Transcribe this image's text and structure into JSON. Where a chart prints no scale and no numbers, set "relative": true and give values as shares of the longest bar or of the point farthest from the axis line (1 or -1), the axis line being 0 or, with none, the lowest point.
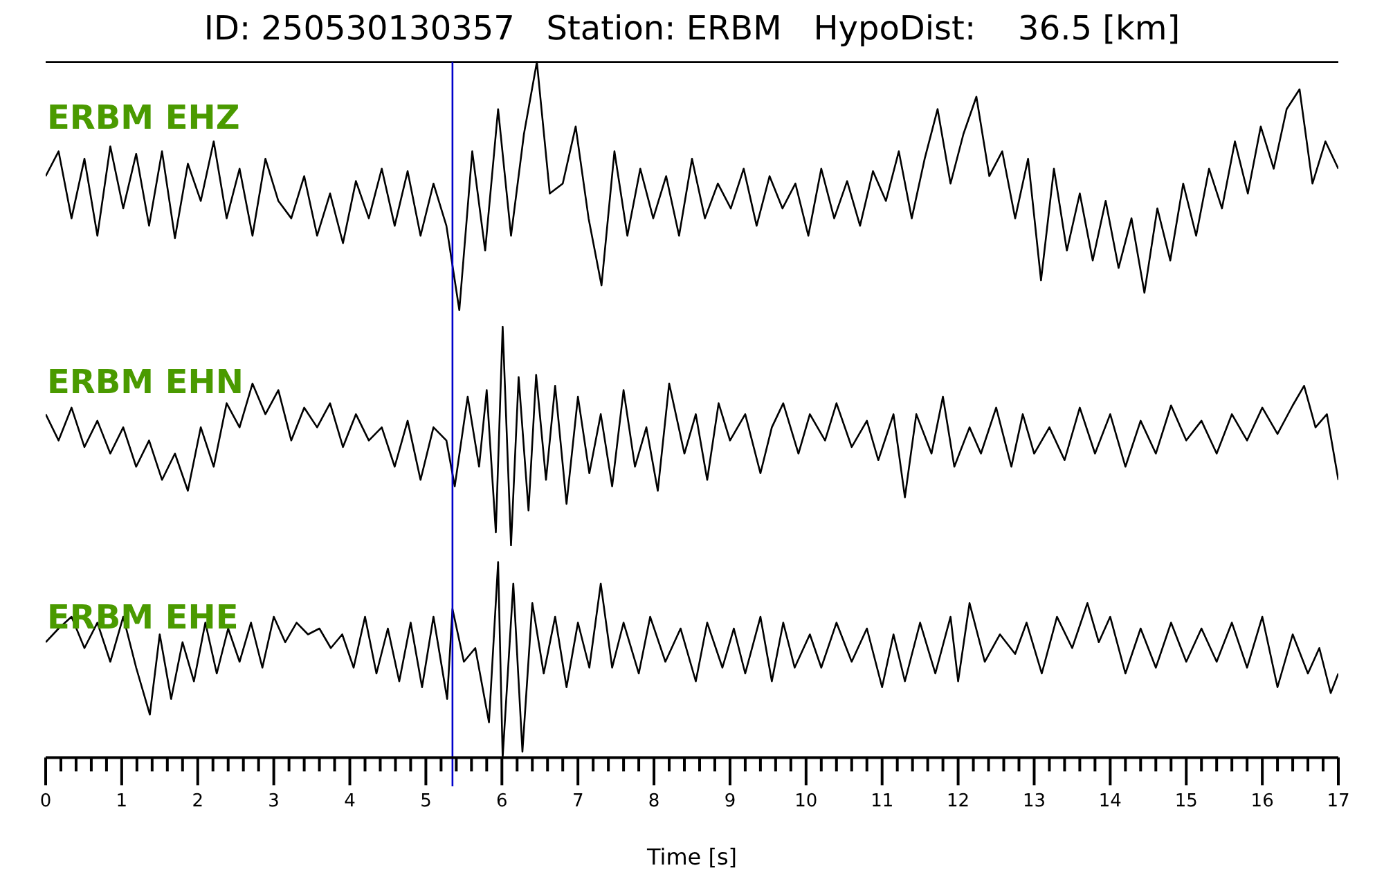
{
  "chart_data": [
    {
      "type": "line",
      "title": "ID: 250530130357   Station: ERBM   HypoDist:    36.5 [km]",
      "relative": true,
      "xlim": [
        0,
        17
      ],
      "tick_labels": false,
      "annotations": [
        "ERBM EHZ"
      ],
      "ref_lines": [
        {
          "axis": "x",
          "value": 5.35,
          "color": "#0000cc"
        }
      ],
      "x": [
        0,
        0.17,
        0.34,
        0.51,
        0.68,
        0.85,
        1.02,
        1.19,
        1.36,
        1.53,
        1.7,
        1.87,
        2.04,
        2.21,
        2.38,
        2.55,
        2.72,
        2.89,
        3.06,
        3.23,
        3.4,
        3.57,
        3.74,
        3.91,
        4.08,
        4.25,
        4.42,
        4.59,
        4.76,
        4.93,
        5.1,
        5.27,
        5.44,
        5.61,
        5.78,
        5.95,
        6.12,
        6.29,
        6.46,
        6.63,
        6.8,
        6.97,
        7.14,
        7.31,
        7.48,
        7.65,
        7.82,
        7.99,
        8.16,
        8.33,
        8.5,
        8.67,
        8.84,
        9.01,
        9.18,
        9.35,
        9.52,
        9.69,
        9.86,
        10.03,
        10.2,
        10.37,
        10.54,
        10.71,
        10.88,
        11.05,
        11.22,
        11.39,
        11.56,
        11.73,
        11.9,
        12.07,
        12.24,
        12.41,
        12.58,
        12.75,
        12.92,
        13.09,
        13.26,
        13.43,
        13.6,
        13.77,
        13.94,
        14.11,
        14.28,
        14.45,
        14.62,
        14.79,
        14.96,
        15.13,
        15.3,
        15.47,
        15.64,
        15.81,
        15.98,
        16.15,
        16.32,
        16.49,
        16.66,
        16.83,
        17
      ],
      "series": [
        {
          "color": "#000000",
          "values": [
            0.54,
            0.64,
            0.37,
            0.61,
            0.3,
            0.66,
            0.41,
            0.63,
            0.34,
            0.64,
            0.29,
            0.59,
            0.44,
            0.68,
            0.37,
            0.57,
            0.3,
            0.61,
            0.44,
            0.37,
            0.54,
            0.3,
            0.47,
            0.27,
            0.52,
            0.37,
            0.57,
            0.34,
            0.56,
            0.3,
            0.51,
            0.34,
            0,
            0.64,
            0.24,
            0.81,
            0.3,
            0.71,
            1,
            0.47,
            0.51,
            0.74,
            0.37,
            0.1,
            0.64,
            0.3,
            0.57,
            0.37,
            0.54,
            0.3,
            0.61,
            0.37,
            0.51,
            0.41,
            0.57,
            0.34,
            0.54,
            0.41,
            0.51,
            0.3,
            0.57,
            0.37,
            0.52,
            0.34,
            0.56,
            0.44,
            0.64,
            0.37,
            0.61,
            0.81,
            0.51,
            0.71,
            0.86,
            0.54,
            0.64,
            0.37,
            0.61,
            0.12,
            0.57,
            0.24,
            0.47,
            0.2,
            0.44,
            0.17,
            0.37,
            0.07,
            0.41,
            0.2,
            0.51,
            0.3,
            0.57,
            0.41,
            0.68,
            0.47,
            0.74,
            0.57,
            0.81,
            0.89,
            0.51,
            0.68,
            0.57
          ]
        }
      ]
    },
    {
      "type": "line",
      "relative": true,
      "xlim": [
        0,
        17
      ],
      "tick_labels": false,
      "annotations": [
        "ERBM EHN"
      ],
      "ref_lines": [
        {
          "axis": "x",
          "value": 5.35,
          "color": "#0000cc"
        }
      ],
      "x": [
        0,
        0.17,
        0.34,
        0.51,
        0.68,
        0.85,
        1.02,
        1.19,
        1.36,
        1.53,
        1.7,
        1.87,
        2.04,
        2.21,
        2.38,
        2.55,
        2.72,
        2.89,
        3.06,
        3.23,
        3.4,
        3.57,
        3.74,
        3.91,
        4.08,
        4.25,
        4.42,
        4.59,
        4.76,
        4.93,
        5.1,
        5.27,
        5.38,
        5.55,
        5.7,
        5.8,
        5.92,
        6.01,
        6.12,
        6.22,
        6.35,
        6.45,
        6.58,
        6.7,
        6.85,
        7.0,
        7.15,
        7.3,
        7.45,
        7.6,
        7.75,
        7.9,
        8.05,
        8.2,
        8.4,
        8.55,
        8.7,
        8.85,
        9.0,
        9.2,
        9.4,
        9.55,
        9.7,
        9.9,
        10.05,
        10.25,
        10.4,
        10.6,
        10.8,
        10.95,
        11.15,
        11.3,
        11.45,
        11.65,
        11.8,
        11.95,
        12.15,
        12.3,
        12.5,
        12.7,
        12.85,
        13.0,
        13.2,
        13.4,
        13.6,
        13.8,
        14.0,
        14.2,
        14.4,
        14.6,
        14.8,
        15.0,
        15.2,
        15.4,
        15.6,
        15.8,
        16.0,
        16.2,
        16.4,
        16.55,
        16.7,
        16.85,
        17.0
      ],
      "series": [
        {
          "color": "#000000",
          "values": [
            0.6,
            0.48,
            0.63,
            0.45,
            0.57,
            0.42,
            0.54,
            0.36,
            0.48,
            0.3,
            0.42,
            0.25,
            0.54,
            0.36,
            0.65,
            0.54,
            0.74,
            0.6,
            0.71,
            0.48,
            0.63,
            0.54,
            0.65,
            0.45,
            0.6,
            0.48,
            0.54,
            0.36,
            0.57,
            0.3,
            0.54,
            0.48,
            0.27,
            0.68,
            0.36,
            0.71,
            0.06,
            1,
            0,
            0.77,
            0.16,
            0.78,
            0.3,
            0.73,
            0.19,
            0.68,
            0.33,
            0.6,
            0.27,
            0.71,
            0.36,
            0.54,
            0.25,
            0.74,
            0.42,
            0.6,
            0.3,
            0.65,
            0.48,
            0.6,
            0.33,
            0.54,
            0.65,
            0.42,
            0.6,
            0.48,
            0.65,
            0.45,
            0.57,
            0.39,
            0.6,
            0.22,
            0.6,
            0.42,
            0.68,
            0.36,
            0.54,
            0.42,
            0.63,
            0.36,
            0.6,
            0.42,
            0.54,
            0.39,
            0.63,
            0.42,
            0.6,
            0.36,
            0.57,
            0.42,
            0.64,
            0.48,
            0.57,
            0.42,
            0.6,
            0.48,
            0.63,
            0.51,
            0.64,
            0.73,
            0.54,
            0.6,
            0.3
          ]
        }
      ]
    },
    {
      "type": "line",
      "relative": true,
      "xlim": [
        0,
        17
      ],
      "tick_labels": "x",
      "xlabel": "Time [s]",
      "annotations": [
        "ERBM EHE"
      ],
      "ref_lines": [
        {
          "axis": "x",
          "value": 5.35,
          "color": "#0000cc"
        }
      ],
      "xticks": [
        0,
        {
          "value": 0.2,
          "label": null
        },
        {
          "value": 0.4,
          "label": null
        },
        {
          "value": 0.6,
          "label": null
        },
        {
          "value": 0.8,
          "label": null
        },
        1,
        {
          "value": 1.2,
          "label": null
        },
        {
          "value": 1.4,
          "label": null
        },
        {
          "value": 1.6,
          "label": null
        },
        {
          "value": 1.8,
          "label": null
        },
        2,
        {
          "value": 2.2,
          "label": null
        },
        {
          "value": 2.4,
          "label": null
        },
        {
          "value": 2.6,
          "label": null
        },
        {
          "value": 2.8,
          "label": null
        },
        3,
        {
          "value": 3.2,
          "label": null
        },
        {
          "value": 3.4,
          "label": null
        },
        {
          "value": 3.6,
          "label": null
        },
        {
          "value": 3.8,
          "label": null
        },
        4,
        {
          "value": 4.2,
          "label": null
        },
        {
          "value": 4.4,
          "label": null
        },
        {
          "value": 4.6,
          "label": null
        },
        {
          "value": 4.8,
          "label": null
        },
        5,
        {
          "value": 5.2,
          "label": null
        },
        {
          "value": 5.4,
          "label": null
        },
        {
          "value": 5.6,
          "label": null
        },
        {
          "value": 5.8,
          "label": null
        },
        6,
        {
          "value": 6.2,
          "label": null
        },
        {
          "value": 6.4,
          "label": null
        },
        {
          "value": 6.6,
          "label": null
        },
        {
          "value": 6.8,
          "label": null
        },
        7,
        {
          "value": 7.2,
          "label": null
        },
        {
          "value": 7.4,
          "label": null
        },
        {
          "value": 7.6,
          "label": null
        },
        {
          "value": 7.8,
          "label": null
        },
        8,
        {
          "value": 8.2,
          "label": null
        },
        {
          "value": 8.4,
          "label": null
        },
        {
          "value": 8.6,
          "label": null
        },
        {
          "value": 8.8,
          "label": null
        },
        9,
        {
          "value": 9.2,
          "label": null
        },
        {
          "value": 9.4,
          "label": null
        },
        {
          "value": 9.6,
          "label": null
        },
        {
          "value": 9.8,
          "label": null
        },
        10,
        {
          "value": 10.2,
          "label": null
        },
        {
          "value": 10.4,
          "label": null
        },
        {
          "value": 10.6,
          "label": null
        },
        {
          "value": 10.8,
          "label": null
        },
        11,
        {
          "value": 11.2,
          "label": null
        },
        {
          "value": 11.4,
          "label": null
        },
        {
          "value": 11.6,
          "label": null
        },
        {
          "value": 11.8,
          "label": null
        },
        12,
        {
          "value": 12.2,
          "label": null
        },
        {
          "value": 12.4,
          "label": null
        },
        {
          "value": 12.6,
          "label": null
        },
        {
          "value": 12.8,
          "label": null
        },
        13,
        {
          "value": 13.2,
          "label": null
        },
        {
          "value": 13.4,
          "label": null
        },
        {
          "value": 13.6,
          "label": null
        },
        {
          "value": 13.8,
          "label": null
        },
        14,
        {
          "value": 14.2,
          "label": null
        },
        {
          "value": 14.4,
          "label": null
        },
        {
          "value": 14.6,
          "label": null
        },
        {
          "value": 14.8,
          "label": null
        },
        15,
        {
          "value": 15.2,
          "label": null
        },
        {
          "value": 15.4,
          "label": null
        },
        {
          "value": 15.6,
          "label": null
        },
        {
          "value": 15.8,
          "label": null
        },
        16,
        {
          "value": 16.2,
          "label": null
        },
        {
          "value": 16.4,
          "label": null
        },
        {
          "value": 16.6,
          "label": null
        },
        {
          "value": 16.8,
          "label": null
        },
        17
      ],
      "x": [
        0,
        0.17,
        0.34,
        0.51,
        0.68,
        0.85,
        1.02,
        1.19,
        1.37,
        1.5,
        1.65,
        1.8,
        1.95,
        2.1,
        2.25,
        2.4,
        2.55,
        2.7,
        2.85,
        3.0,
        3.15,
        3.3,
        3.45,
        3.6,
        3.75,
        3.9,
        4.05,
        4.2,
        4.35,
        4.5,
        4.65,
        4.8,
        4.95,
        5.1,
        5.28,
        5.35,
        5.5,
        5.65,
        5.83,
        5.95,
        6.01,
        6.15,
        6.27,
        6.4,
        6.55,
        6.7,
        6.85,
        7.0,
        7.15,
        7.3,
        7.45,
        7.6,
        7.8,
        7.95,
        8.15,
        8.35,
        8.55,
        8.7,
        8.9,
        9.05,
        9.2,
        9.4,
        9.55,
        9.7,
        9.85,
        10.05,
        10.2,
        10.4,
        10.6,
        10.8,
        11.0,
        11.15,
        11.3,
        11.5,
        11.7,
        11.9,
        12.0,
        12.15,
        12.35,
        12.55,
        12.75,
        12.9,
        13.1,
        13.3,
        13.5,
        13.7,
        13.85,
        14.0,
        14.2,
        14.4,
        14.6,
        14.8,
        15.0,
        15.2,
        15.4,
        15.6,
        15.8,
        16.0,
        16.2,
        16.4,
        16.6,
        16.75,
        16.9,
        17.0
      ],
      "series": [
        {
          "color": "#000000",
          "values": [
            0.59,
            0.66,
            0.72,
            0.56,
            0.69,
            0.49,
            0.72,
            0.46,
            0.22,
            0.63,
            0.3,
            0.59,
            0.39,
            0.69,
            0.43,
            0.66,
            0.49,
            0.69,
            0.46,
            0.72,
            0.59,
            0.69,
            0.63,
            0.66,
            0.56,
            0.63,
            0.46,
            0.72,
            0.43,
            0.66,
            0.39,
            0.69,
            0.36,
            0.72,
            0.3,
            0.76,
            0.49,
            0.56,
            0.18,
            1,
            0,
            0.89,
            0.03,
            0.79,
            0.43,
            0.72,
            0.36,
            0.69,
            0.46,
            0.89,
            0.46,
            0.69,
            0.43,
            0.72,
            0.49,
            0.66,
            0.39,
            0.69,
            0.46,
            0.66,
            0.43,
            0.72,
            0.39,
            0.69,
            0.46,
            0.63,
            0.46,
            0.69,
            0.49,
            0.66,
            0.36,
            0.63,
            0.39,
            0.69,
            0.43,
            0.72,
            0.39,
            0.79,
            0.49,
            0.63,
            0.53,
            0.69,
            0.43,
            0.72,
            0.56,
            0.79,
            0.59,
            0.72,
            0.43,
            0.66,
            0.46,
            0.69,
            0.49,
            0.66,
            0.49,
            0.69,
            0.46,
            0.72,
            0.36,
            0.63,
            0.43,
            0.56,
            0.33,
            0.43
          ]
        }
      ]
    }
  ]
}
